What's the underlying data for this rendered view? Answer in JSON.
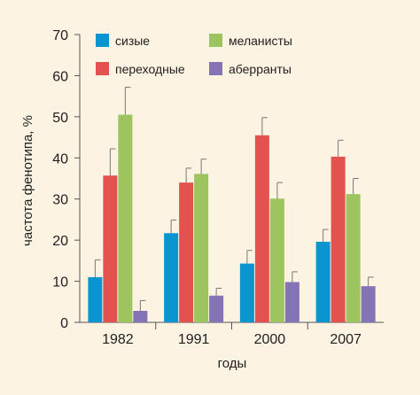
{
  "chart_data": {
    "type": "bar",
    "title": "",
    "xlabel": "годы",
    "ylabel": "частота фенотипа, %",
    "ylim": [
      0,
      70
    ],
    "yticks": [
      0,
      10,
      20,
      30,
      40,
      50,
      60,
      70
    ],
    "grid": false,
    "legend_position": "top",
    "error_bars": true,
    "categories": [
      "1982",
      "1991",
      "2000",
      "2007"
    ],
    "series": [
      {
        "name": "сизые",
        "color": "#0b95d0",
        "values": [
          11,
          21.7,
          14.3,
          19.6
        ],
        "errors": [
          4.2,
          3.2,
          3.2,
          3.0
        ]
      },
      {
        "name": "переходные",
        "color": "#e3524f",
        "values": [
          35.7,
          34,
          45.5,
          40.3
        ],
        "errors": [
          6.5,
          3.5,
          4.3,
          4.0
        ]
      },
      {
        "name": "меланисты",
        "color": "#9dc45f",
        "values": [
          50.5,
          36.1,
          30.1,
          31.2
        ],
        "errors": [
          6.7,
          3.6,
          3.9,
          3.8
        ]
      },
      {
        "name": "аберранты",
        "color": "#8473b5",
        "values": [
          2.8,
          6.5,
          9.8,
          8.8
        ],
        "errors": [
          2.5,
          1.8,
          2.5,
          2.2
        ]
      }
    ]
  }
}
